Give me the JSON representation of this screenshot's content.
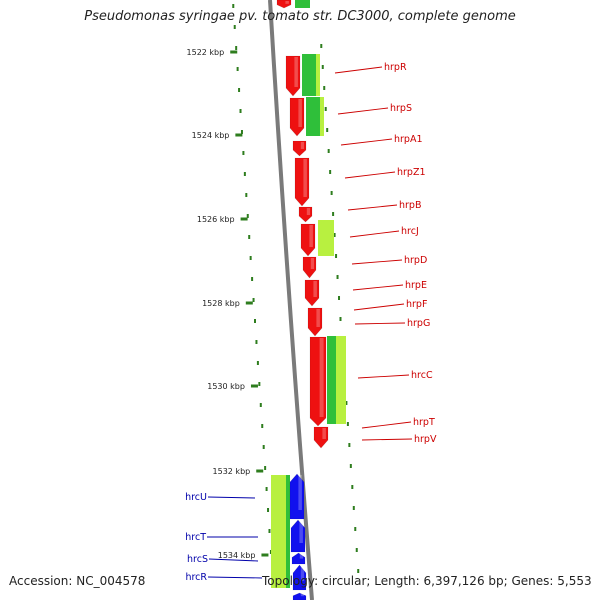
{
  "title": "Pseudomonas syringae pv. tomato str. DC3000, complete genome",
  "footer": {
    "accession": "Accession: NC_004578",
    "summary": "Topology: circular; Length: 6,397,126 bp; Genes: 5,553"
  },
  "ticks": [
    "1522 kbp",
    "1524 kbp",
    "1526 kbp",
    "1528 kbp",
    "1530 kbp",
    "1532 kbp",
    "1534 kbp"
  ],
  "colors": {
    "backbone": "#7a7a7a",
    "tick": "#2e7d1e",
    "hrp_gene": "#ee1111",
    "hrc_gene": "#1111ee",
    "gc_dark": "#2fbf3a",
    "gc_light": "#b8f040",
    "hrp_label": "#cc0000",
    "hrc_label": "#0000aa"
  },
  "genes": [
    {
      "label": "hrpR",
      "strand": "hrp"
    },
    {
      "label": "hrpS",
      "strand": "hrp"
    },
    {
      "label": "hrpA1",
      "strand": "hrp"
    },
    {
      "label": "hrpZ1",
      "strand": "hrp"
    },
    {
      "label": "hrpB",
      "strand": "hrp"
    },
    {
      "label": "hrcJ",
      "strand": "hrp"
    },
    {
      "label": "hrpD",
      "strand": "hrp"
    },
    {
      "label": "hrpE",
      "strand": "hrp"
    },
    {
      "label": "hrpF",
      "strand": "hrp"
    },
    {
      "label": "hrpG",
      "strand": "hrp"
    },
    {
      "label": "hrcC",
      "strand": "hrp"
    },
    {
      "label": "hrpT",
      "strand": "hrp"
    },
    {
      "label": "hrpV",
      "strand": "hrp"
    },
    {
      "label": "hrcU",
      "strand": "hrc"
    },
    {
      "label": "hrcT",
      "strand": "hrc"
    },
    {
      "label": "hrcS",
      "strand": "hrc"
    },
    {
      "label": "hrcR",
      "strand": "hrc"
    }
  ]
}
